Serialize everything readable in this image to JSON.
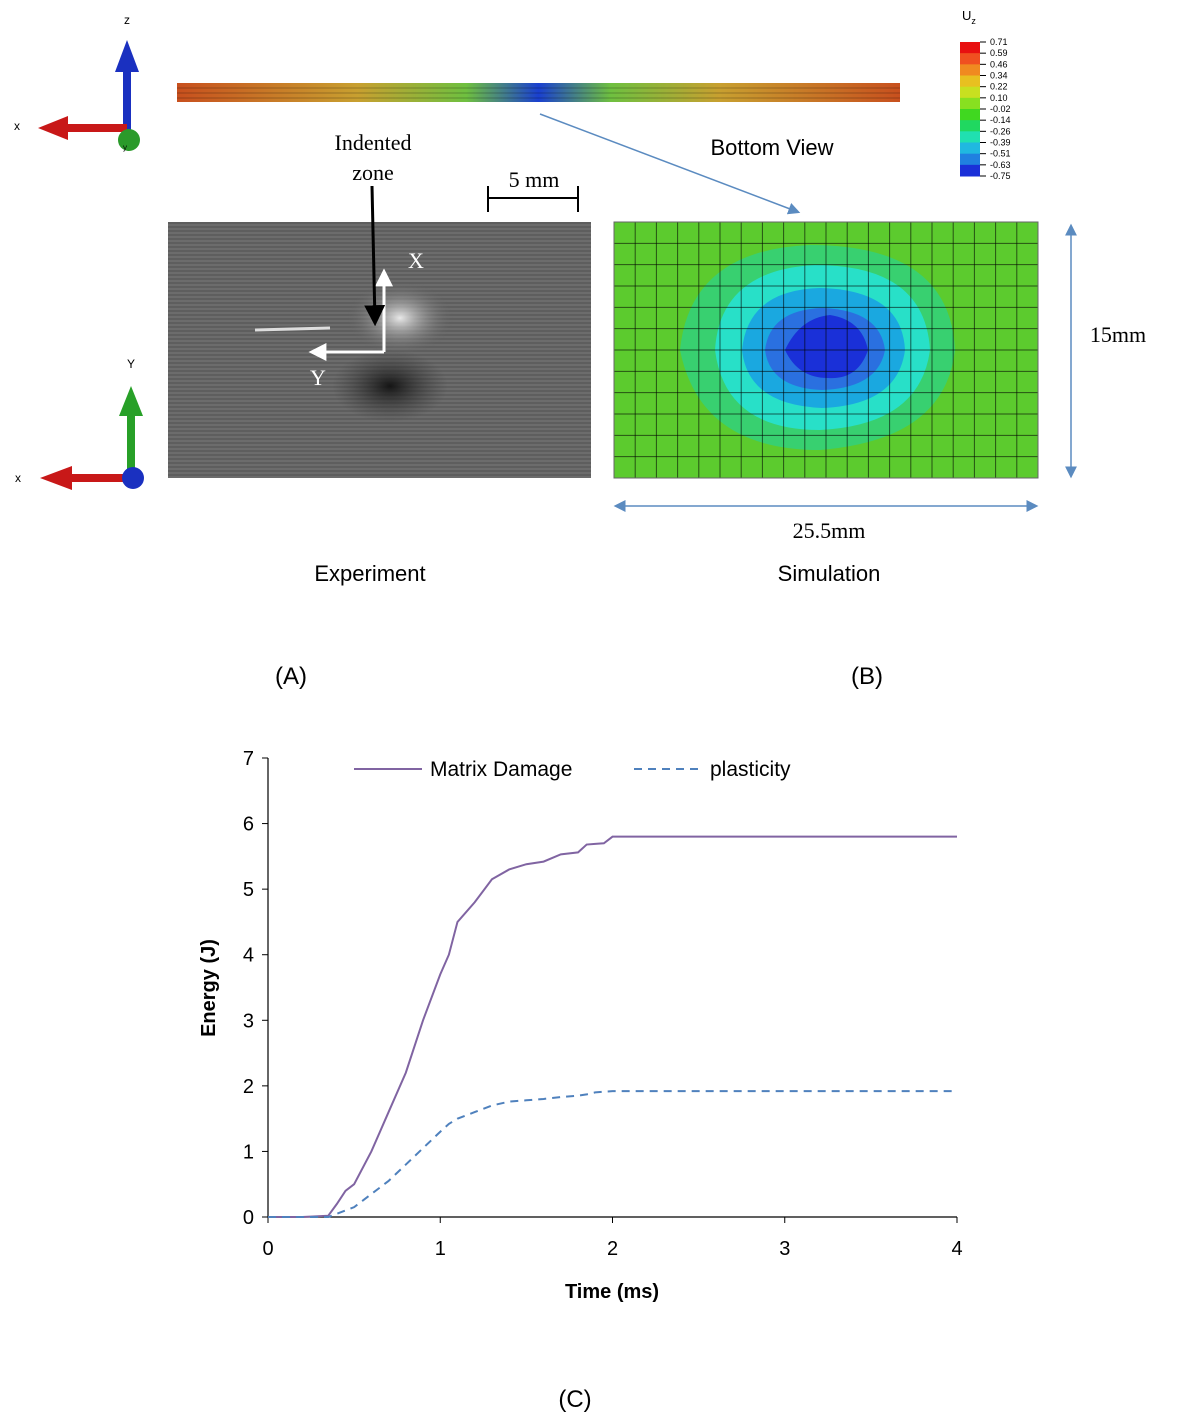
{
  "figure": {
    "top_triad": {
      "z": "z",
      "x": "x",
      "y": "y"
    },
    "bottom_triad": {
      "y": "Y",
      "x": "x"
    },
    "colorbar": {
      "title": "U",
      "subscript": "z",
      "labels": [
        "0.71",
        "0.59",
        "0.46",
        "0.34",
        "0.22",
        "0.10",
        "-0.02",
        "-0.14",
        "-0.26",
        "-0.39",
        "-0.51",
        "-0.63",
        "-0.75"
      ]
    },
    "indented_zone": [
      "Indented",
      "zone"
    ],
    "scale_bar": "5 mm",
    "photo_axes": {
      "x": "X",
      "y": "Y"
    },
    "bottom_view": "Bottom View",
    "width_dim": "25.5mm",
    "height_dim": "15mm",
    "experiment": "Experiment",
    "simulation": "Simulation",
    "panel_a": "(A)",
    "panel_b": "(B)",
    "panel_c": "(C)"
  },
  "chart_data": {
    "type": "line",
    "x_label": "Time (ms)",
    "y_label": "Energy (J)",
    "x": [
      0,
      0.2,
      0.35,
      0.4,
      0.45,
      0.5,
      0.6,
      0.7,
      0.8,
      0.9,
      1.0,
      1.05,
      1.1,
      1.2,
      1.3,
      1.4,
      1.5,
      1.6,
      1.7,
      1.8,
      1.85,
      1.9,
      1.95,
      2.0,
      4.0
    ],
    "series": [
      {
        "name": "Matrix Damage",
        "color": "#8064a2",
        "dash": false,
        "values": [
          0,
          0,
          0.02,
          0.2,
          0.4,
          0.5,
          1.0,
          1.6,
          2.2,
          3.0,
          3.7,
          4.0,
          4.5,
          4.8,
          5.15,
          5.3,
          5.38,
          5.42,
          5.53,
          5.56,
          5.68,
          5.69,
          5.7,
          5.8,
          5.8
        ]
      },
      {
        "name": "plasticity",
        "color": "#4f81bd",
        "dash": true,
        "values": [
          0,
          0,
          0,
          0.05,
          0.1,
          0.15,
          0.35,
          0.55,
          0.8,
          1.05,
          1.3,
          1.42,
          1.5,
          1.6,
          1.7,
          1.76,
          1.78,
          1.8,
          1.83,
          1.85,
          1.87,
          1.9,
          1.91,
          1.92,
          1.92
        ]
      }
    ],
    "xlim": [
      0,
      4
    ],
    "ylim": [
      0,
      7
    ],
    "xticks": [
      0,
      1,
      2,
      3,
      4
    ],
    "yticks": [
      0,
      1,
      2,
      3,
      4,
      5,
      6,
      7
    ],
    "grid": false,
    "legend": "top"
  }
}
